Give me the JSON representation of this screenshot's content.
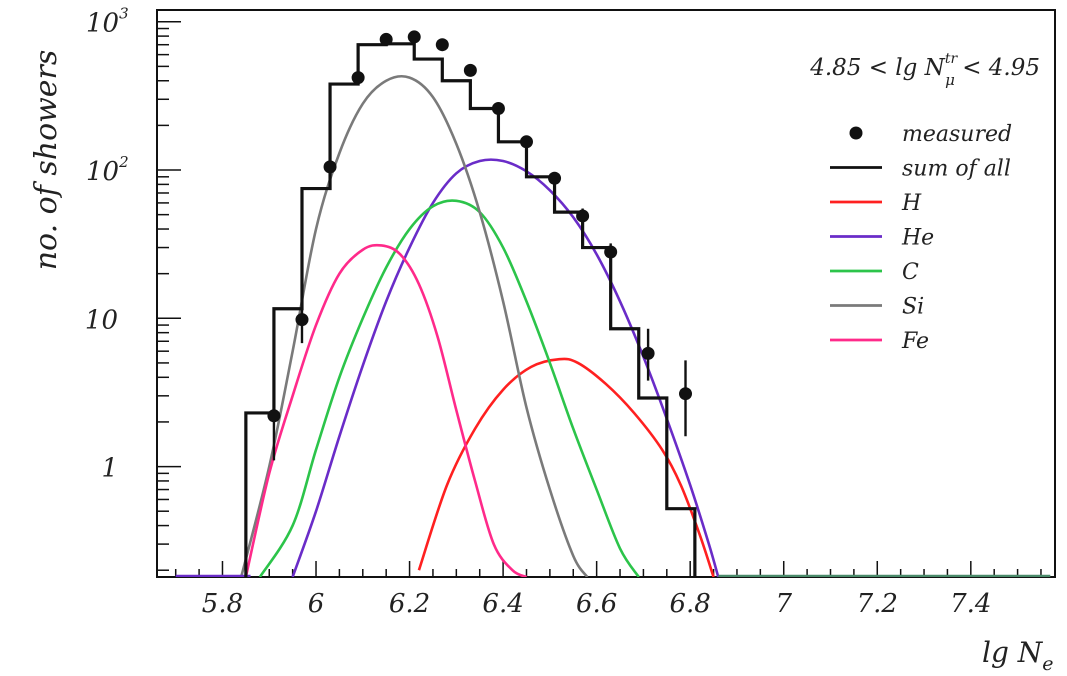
{
  "chart_data": {
    "type": "line",
    "title": "",
    "ylabel": "no. of showers",
    "xlabel_main": "lg N",
    "xlabel_sub": "e",
    "annotation": {
      "pre": "4.85 < lg N",
      "sup": "tr",
      "sub": "μ",
      "post": " < 4.95"
    },
    "xlim": [
      5.66,
      7.58
    ],
    "ylim": [
      0.18,
      1200
    ],
    "yscale": "log",
    "x_ticks": [
      5.8,
      6.0,
      6.2,
      6.4,
      6.6,
      6.8,
      7.0,
      7.2,
      7.4
    ],
    "x_tick_labels": [
      "5.8",
      "6",
      "6.2",
      "6.4",
      "6.6",
      "6.8",
      "7",
      "7.2",
      "7.4"
    ],
    "y_ticks": [
      1,
      10,
      100,
      1000
    ],
    "y_tick_labels": {
      "t1": "1",
      "t10": "10",
      "t100_base": "10",
      "t100_exp": "2",
      "t1000_base": "10",
      "t1000_exp": "3"
    },
    "legend_placement": "right",
    "legend": [
      {
        "label": "measured",
        "kind": "marker",
        "color": "#111111"
      },
      {
        "label": "sum of all",
        "kind": "line",
        "color": "#111111"
      },
      {
        "label": "H",
        "kind": "line",
        "color": "#ff2020"
      },
      {
        "label": "He",
        "kind": "line",
        "color": "#6a2cc8"
      },
      {
        "label": "C",
        "kind": "line",
        "color": "#2cc44a"
      },
      {
        "label": "Si",
        "kind": "line",
        "color": "#7a7a7a"
      },
      {
        "label": "Fe",
        "kind": "line",
        "color": "#ff2a8a"
      }
    ],
    "measured": [
      {
        "x": 5.91,
        "y": 2.2,
        "err": [
          1.1,
          4.1
        ]
      },
      {
        "x": 5.97,
        "y": 9.8,
        "err": [
          6.8,
          14.5
        ]
      },
      {
        "x": 6.03,
        "y": 105,
        "err": [
          92,
          120
        ]
      },
      {
        "x": 6.09,
        "y": 420,
        "err": [
          390,
          455
        ]
      },
      {
        "x": 6.15,
        "y": 760,
        "err": [
          720,
          800
        ]
      },
      {
        "x": 6.21,
        "y": 790,
        "err": [
          750,
          830
        ]
      },
      {
        "x": 6.27,
        "y": 700,
        "err": [
          660,
          740
        ]
      },
      {
        "x": 6.33,
        "y": 470,
        "err": [
          440,
          500
        ]
      },
      {
        "x": 6.39,
        "y": 260,
        "err": [
          240,
          280
        ]
      },
      {
        "x": 6.45,
        "y": 155,
        "err": [
          140,
          170
        ]
      },
      {
        "x": 6.51,
        "y": 88,
        "err": [
          80,
          97
        ]
      },
      {
        "x": 6.57,
        "y": 49,
        "err": [
          44,
          55
        ]
      },
      {
        "x": 6.63,
        "y": 28,
        "err": [
          24,
          32
        ]
      },
      {
        "x": 6.71,
        "y": 5.8,
        "err": [
          3.8,
          8.5
        ]
      },
      {
        "x": 6.79,
        "y": 3.1,
        "err": [
          1.6,
          5.2
        ]
      }
    ],
    "sum_of_all": {
      "edges": [
        5.85,
        5.91,
        5.97,
        6.03,
        6.09,
        6.15,
        6.21,
        6.27,
        6.33,
        6.39,
        6.45,
        6.51,
        6.57,
        6.63,
        6.69,
        6.75,
        6.81
      ],
      "values": [
        2.3,
        11.6,
        75,
        380,
        700,
        710,
        560,
        400,
        260,
        155,
        90,
        52,
        30,
        8.5,
        2.9,
        0.52
      ]
    },
    "series": [
      {
        "name": "H",
        "color": "#ff2020",
        "x": [
          6.22,
          6.28,
          6.34,
          6.4,
          6.46,
          6.52,
          6.56,
          6.62,
          6.68,
          6.74,
          6.78,
          6.82,
          6.85
        ],
        "y": [
          0.2,
          0.75,
          1.8,
          3.3,
          4.7,
          5.3,
          5.0,
          3.6,
          2.3,
          1.3,
          0.75,
          0.35,
          0.18
        ]
      },
      {
        "name": "He",
        "color": "#6a2cc8",
        "x": [
          5.95,
          6.0,
          6.05,
          6.1,
          6.15,
          6.2,
          6.25,
          6.3,
          6.35,
          6.4,
          6.45,
          6.5,
          6.55,
          6.6,
          6.65,
          6.7,
          6.75,
          6.8,
          6.84,
          6.86
        ],
        "y": [
          0.18,
          0.5,
          1.6,
          4.8,
          13,
          30,
          60,
          95,
          115,
          115,
          98,
          73,
          48,
          27,
          13,
          5.5,
          2.1,
          0.75,
          0.3,
          0.18
        ]
      },
      {
        "name": "C",
        "color": "#2cc44a",
        "x": [
          5.88,
          5.95,
          6.0,
          6.05,
          6.1,
          6.15,
          6.2,
          6.25,
          6.3,
          6.35,
          6.4,
          6.45,
          6.5,
          6.55,
          6.6,
          6.65,
          6.69
        ],
        "y": [
          0.18,
          0.4,
          1.3,
          4.0,
          10,
          22,
          40,
          57,
          62,
          52,
          30,
          13,
          5.0,
          1.8,
          0.7,
          0.28,
          0.18
        ]
      },
      {
        "name": "Si",
        "color": "#7a7a7a",
        "x": [
          5.84,
          5.9,
          5.95,
          6.0,
          6.05,
          6.1,
          6.15,
          6.2,
          6.25,
          6.3,
          6.35,
          6.4,
          6.45,
          6.5,
          6.55,
          6.58
        ],
        "y": [
          0.18,
          1.0,
          6.0,
          40,
          130,
          280,
          400,
          420,
          310,
          150,
          52,
          13,
          2.5,
          0.7,
          0.25,
          0.18
        ]
      },
      {
        "name": "Fe",
        "color": "#ff2a8a",
        "x": [
          5.85,
          5.9,
          5.95,
          6.0,
          6.05,
          6.1,
          6.14,
          6.18,
          6.22,
          6.26,
          6.3,
          6.34,
          6.38,
          6.42,
          6.45
        ],
        "y": [
          0.18,
          0.9,
          3.0,
          9.0,
          20,
          29,
          31,
          27,
          17,
          7.5,
          2.4,
          0.8,
          0.3,
          0.2,
          0.18
        ]
      }
    ]
  }
}
